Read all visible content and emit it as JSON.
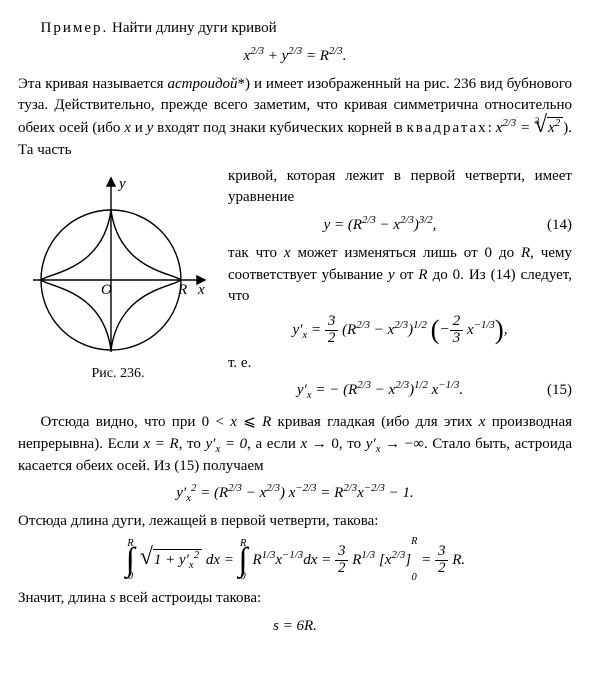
{
  "line1_label": "Пример.",
  "line1_text": " Найти длину дуги кривой",
  "eq1": "x<sup>2/3</sup> + y<sup>2/3</sup> = R<sup>2/3</sup>.",
  "para1a": "Эта кривая называется ",
  "para1_em": "астроидой",
  "para1b": "*) и имеет изображенный на рис. 236 вид бубнового туза. Действительно, прежде всего заметим, что кривая симметрична относительно обеих осей (ибо ",
  "para1c": " и ",
  "para1d": " входят под знаки кубических корней в ",
  "para1_sp": "квадратах",
  "para1e": ": ",
  "para1_eq": "x<sup>2/3</sup> =",
  "para1_sq": "x<sup>2</sup>",
  "para1f": "). Та часть",
  "rtext1": "кривой, которая лежит в первой четверти, имеет уравнение",
  "eq14": "y = (R<sup>2/3</sup> − x<sup>2/3</sup>)<sup>3/2</sup>,",
  "eq14n": "(14)",
  "rtext2a": "так что ",
  "rtext2b": " может изменяться лишь от 0 до ",
  "rtext2c": ", чему соответствует убывание ",
  "rtext2d": " от ",
  "rtext2e": " до 0. Из (14) следует, что",
  "eq_yx1_a": "y′<sub>x</sub> = ",
  "eq_yx1_b": " (R<sup>2/3</sup> − x<sup>2/3</sup>)<sup>1/2</sup> ",
  "eq_yx1_c": " x<sup>−1/3</sup>",
  "te": "т. е.",
  "figcap": "Рис. 236.",
  "eq15": "y′<sub>x</sub> = − (R<sup>2/3</sup> − x<sup>2/3</sup>)<sup>1/2</sup> x<sup>−1/3</sup>.",
  "eq15n": "(15)",
  "para2a": "Отсюда видно, что при 0 < ",
  "para2b": " ⩽ ",
  "para2c": " кривая гладкая (ибо для этих ",
  "para2d": " производная непрерывна). Если ",
  "para2e": ", то ",
  "para2f": ", а если ",
  "para2g": " → 0, то ",
  "para2h": " → −∞. Стало быть, астроида касается обеих осей. Из (15) получаем",
  "eq_sq": "y′<sub>x</sub><sup>2</sup> = (R<sup>2/3</sup> − x<sup>2/3</sup>) x<sup>−2/3</sup> = R<sup>2/3</sup>x<sup>−2/3</sup> − 1.",
  "para3": "Отсюда длина дуги, лежащей в первой четверти, такова:",
  "int_body1": "1 + y′<sub>x</sub><sup>2</sup>",
  "int_dx": " dx = ",
  "int_body2": "R<sup>1/3</sup>x<sup>−1/3</sup>dx = ",
  "int_body3": " R<sup>1/3</sup> [x<sup>2/3</sup>]",
  "int_body4": " = ",
  "int_body5": " R.",
  "para4": "Значит, длина ",
  "para4b": " всей астроиды такова:",
  "eq_final": "s = 6R.",
  "fig": {
    "labels": {
      "y": "y",
      "x": "x",
      "O": "O",
      "R": "R"
    },
    "colors": {
      "stroke": "#000",
      "bg": "#fff"
    },
    "linewidth": 1.4
  }
}
